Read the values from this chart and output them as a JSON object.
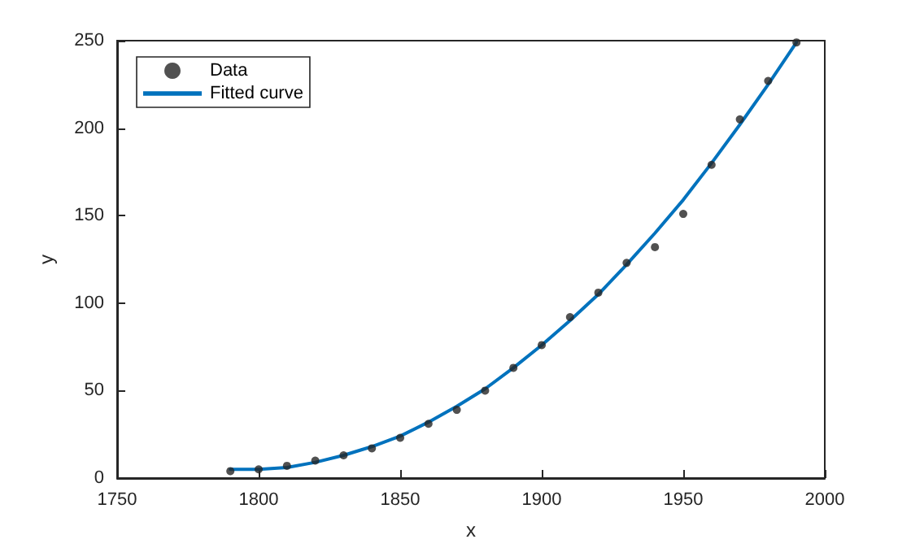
{
  "chart_data": {
    "type": "scatter",
    "xlabel": "x",
    "ylabel": "y",
    "xlim": [
      1750,
      2000
    ],
    "xticks": [
      1750,
      1800,
      1850,
      1900,
      1950,
      2000
    ],
    "ylim": [
      0,
      250
    ],
    "yticks": [
      0,
      50,
      100,
      150,
      200,
      250
    ],
    "grid": false,
    "legend": "top left",
    "series": [
      {
        "name": "Data",
        "marker": "circle",
        "color": "#262626",
        "x": [
          1790,
          1800,
          1810,
          1820,
          1830,
          1840,
          1850,
          1860,
          1870,
          1880,
          1890,
          1900,
          1910,
          1920,
          1930,
          1940,
          1950,
          1960,
          1970,
          1980,
          1990
        ],
        "values": [
          4,
          5,
          7,
          10,
          13,
          17,
          23,
          31,
          39,
          50,
          63,
          76,
          92,
          106,
          123,
          132,
          151,
          179,
          205,
          227,
          249
        ]
      },
      {
        "name": "Fitted curve",
        "type": "line",
        "marker": "none",
        "line_style": "solid",
        "color": "#0072bd",
        "x": [
          1790,
          1800,
          1810,
          1820,
          1830,
          1840,
          1850,
          1860,
          1870,
          1880,
          1890,
          1900,
          1910,
          1920,
          1930,
          1940,
          1950,
          1960,
          1970,
          1980,
          1990
        ],
        "values": [
          5,
          5,
          6,
          9,
          13,
          18,
          24,
          32,
          41,
          51,
          63,
          76,
          90,
          105,
          122,
          140,
          159,
          180,
          202,
          225,
          249
        ]
      }
    ]
  }
}
